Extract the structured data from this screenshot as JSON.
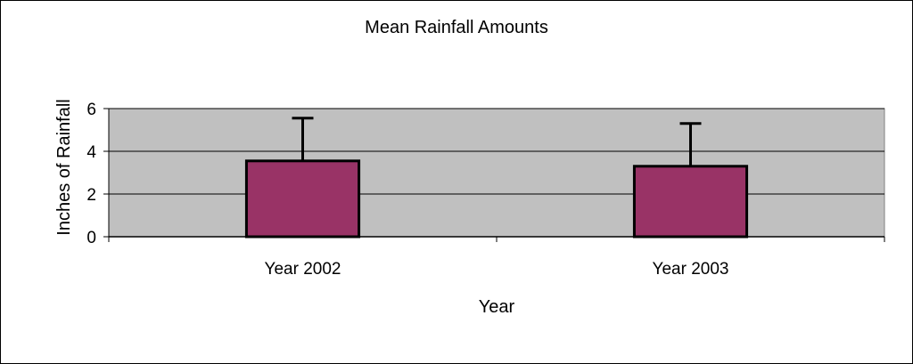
{
  "chart_data": {
    "type": "bar",
    "title": "Mean Rainfall Amounts",
    "xlabel": "Year",
    "ylabel": "Inches of Rainfall",
    "categories": [
      "Year 2002",
      "Year 2003"
    ],
    "series": [
      {
        "values": [
          3.55,
          3.3
        ],
        "error_plus": [
          2.0,
          2.0
        ]
      }
    ],
    "ylim": [
      0,
      6
    ],
    "yticks": [
      0,
      2,
      4,
      6
    ],
    "grid": true,
    "legend": "none",
    "colors": {
      "bar": "#993366",
      "plot_background": "#c0c0c0",
      "gridline": "#000000"
    }
  }
}
